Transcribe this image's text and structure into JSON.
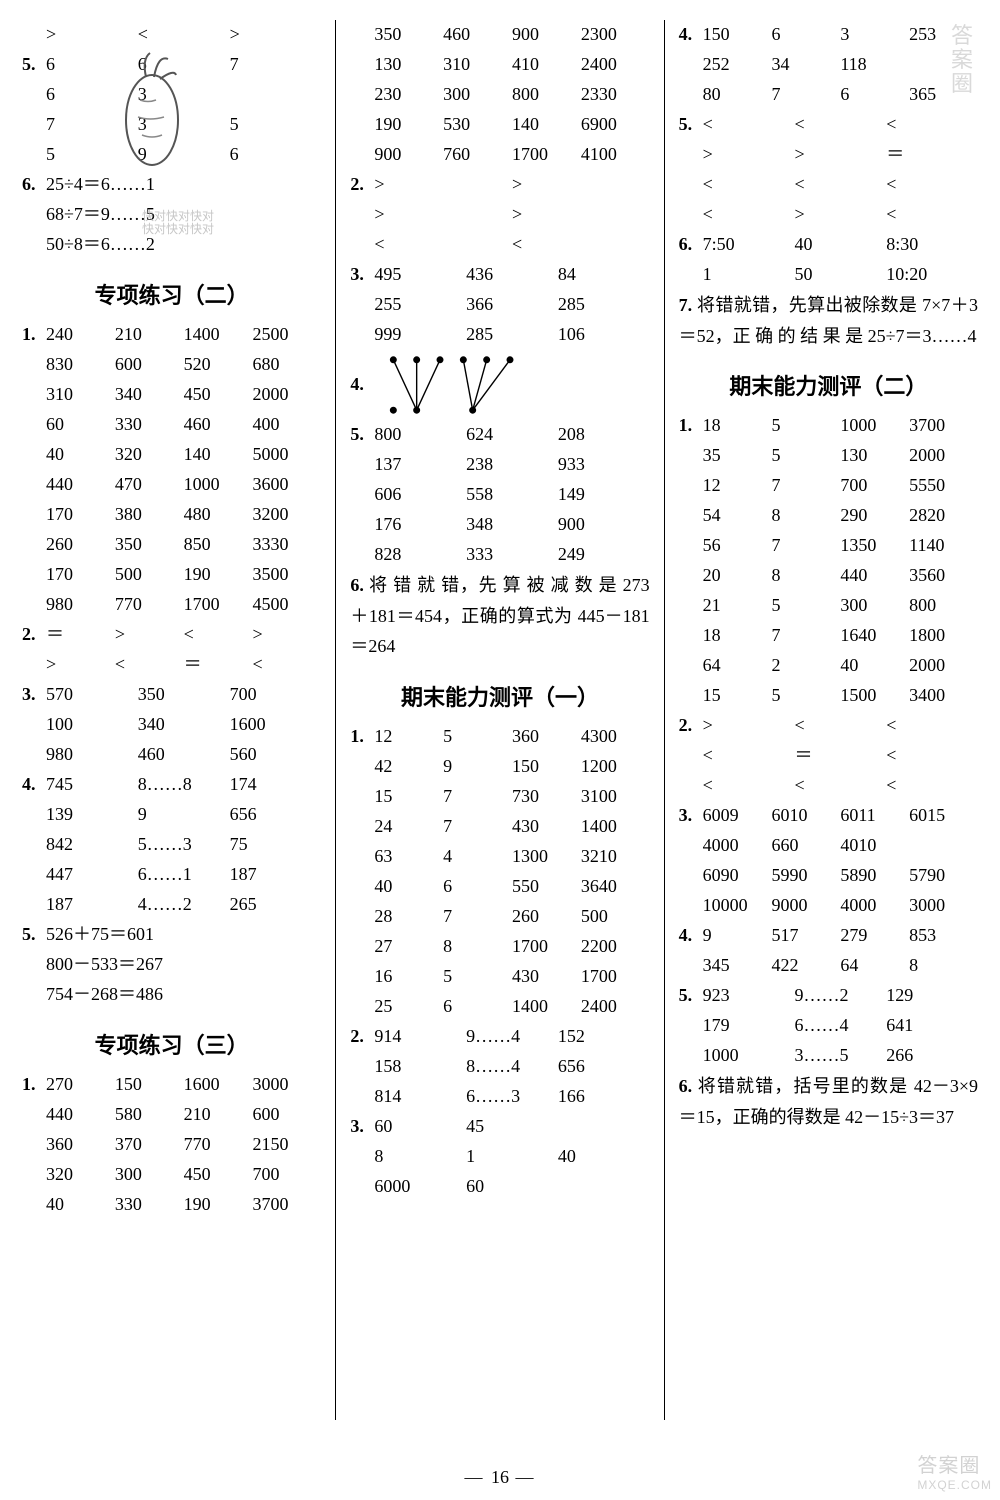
{
  "page_number": "16",
  "watermark_right_big": "答案圈",
  "watermark_right_small": "MXQE.COM",
  "watermark_top": "答案圈",
  "watermark_center_l1": "快对快对快对",
  "watermark_center_l2": "快对快对快对",
  "col1": {
    "r0": [
      ">",
      "<",
      ">"
    ],
    "q5_rows": [
      [
        "6",
        "6",
        "7"
      ],
      [
        "6",
        "3",
        ""
      ],
      [
        "7",
        "3",
        "5"
      ],
      [
        "5",
        "9",
        "6"
      ]
    ],
    "q6_l1": "25÷4＝6……1",
    "q6_l2": "68÷7＝9……5",
    "q6_l3": "50÷8＝6……2",
    "title_a": "专项练习（二）",
    "q1_rows": [
      [
        "240",
        "210",
        "1400",
        "2500"
      ],
      [
        "830",
        "600",
        "520",
        "680"
      ],
      [
        "310",
        "340",
        "450",
        "2000"
      ],
      [
        "60",
        "330",
        "460",
        "400"
      ],
      [
        "40",
        "320",
        "140",
        "5000"
      ],
      [
        "440",
        "470",
        "1000",
        "3600"
      ],
      [
        "170",
        "380",
        "480",
        "3200"
      ],
      [
        "260",
        "350",
        "850",
        "3330"
      ],
      [
        "170",
        "500",
        "190",
        "3500"
      ],
      [
        "980",
        "770",
        "1700",
        "4500"
      ]
    ],
    "q2_rows": [
      [
        "＝",
        ">",
        "<",
        ">"
      ],
      [
        ">",
        "<",
        "＝",
        "<"
      ]
    ],
    "q3_rows": [
      [
        "570",
        "350",
        "700"
      ],
      [
        "100",
        "340",
        "1600"
      ],
      [
        "980",
        "460",
        "560"
      ]
    ],
    "q4_rows": [
      [
        "745",
        "8……8",
        "174"
      ],
      [
        "139",
        "9",
        "656"
      ],
      [
        "842",
        "5……3",
        "75"
      ],
      [
        "447",
        "6……1",
        "187"
      ],
      [
        "187",
        "4……2",
        "265"
      ]
    ],
    "q5b_l1": "526＋75＝601",
    "q5b_l2": "800－533＝267",
    "q5b_l3": "754－268＝486",
    "title_b": "专项练习（三）",
    "q1b_rows": [
      [
        "270",
        "150",
        "1600",
        "3000"
      ],
      [
        "440",
        "580",
        "210",
        "600"
      ],
      [
        "360",
        "370",
        "770",
        "2150"
      ],
      [
        "320",
        "300",
        "450",
        "700"
      ],
      [
        "40",
        "330",
        "190",
        "3700"
      ]
    ]
  },
  "col2": {
    "top_rows": [
      [
        "350",
        "460",
        "900",
        "2300"
      ],
      [
        "130",
        "310",
        "410",
        "2400"
      ],
      [
        "230",
        "300",
        "800",
        "2330"
      ],
      [
        "190",
        "530",
        "140",
        "6900"
      ],
      [
        "900",
        "760",
        "1700",
        "4100"
      ]
    ],
    "q2_rows": [
      [
        ">",
        ">"
      ],
      [
        ">",
        ">"
      ],
      [
        "<",
        "<"
      ]
    ],
    "q3_rows": [
      [
        "495",
        "436",
        "84"
      ],
      [
        "255",
        "366",
        "285"
      ],
      [
        "999",
        "285",
        "106"
      ]
    ],
    "q4_label": "4.",
    "q5_rows": [
      [
        "800",
        "624",
        "208"
      ],
      [
        "137",
        "238",
        "933"
      ],
      [
        "606",
        "558",
        "149"
      ],
      [
        "176",
        "348",
        "900"
      ],
      [
        "828",
        "333",
        "249"
      ]
    ],
    "q6_text": "将 错 就 错，先 算 被 减 数 是 273＋181＝454，正确的算式为 445－181＝264",
    "title_a": "期末能力测评（一）",
    "q1_rows": [
      [
        "12",
        "5",
        "360",
        "4300"
      ],
      [
        "42",
        "9",
        "150",
        "1200"
      ],
      [
        "15",
        "7",
        "730",
        "3100"
      ],
      [
        "24",
        "7",
        "430",
        "1400"
      ],
      [
        "63",
        "4",
        "1300",
        "3210"
      ],
      [
        "40",
        "6",
        "550",
        "3640"
      ],
      [
        "28",
        "7",
        "260",
        "500"
      ],
      [
        "27",
        "8",
        "1700",
        "2200"
      ],
      [
        "16",
        "5",
        "430",
        "1700"
      ],
      [
        "25",
        "6",
        "1400",
        "2400"
      ]
    ],
    "q2b_rows": [
      [
        "914",
        "9……4",
        "152"
      ],
      [
        "158",
        "8……4",
        "656"
      ],
      [
        "814",
        "6……3",
        "166"
      ]
    ],
    "q3b_rows": [
      [
        "60",
        "45",
        ""
      ],
      [
        "8",
        "1",
        "40"
      ],
      [
        "6000",
        "60",
        ""
      ]
    ]
  },
  "col3": {
    "q4_rows": [
      [
        "150",
        "6",
        "3",
        "253"
      ],
      [
        "252",
        "34",
        "118",
        ""
      ],
      [
        "80",
        "7",
        "6",
        "365"
      ]
    ],
    "q5_rows": [
      [
        "<",
        "<",
        "<"
      ],
      [
        ">",
        ">",
        "＝"
      ],
      [
        "<",
        "<",
        "<"
      ],
      [
        "<",
        ">",
        "<"
      ]
    ],
    "q6_rows": [
      [
        "7:50",
        "40",
        "8:30"
      ],
      [
        "1",
        "50",
        "10:20"
      ]
    ],
    "q7_text": "将错就错，先算出被除数是 7×7＋3＝52，正 确 的 结 果 是 25÷7＝3……4",
    "title_a": "期末能力测评（二）",
    "q1_rows": [
      [
        "18",
        "5",
        "1000",
        "3700"
      ],
      [
        "35",
        "5",
        "130",
        "2000"
      ],
      [
        "12",
        "7",
        "700",
        "5550"
      ],
      [
        "54",
        "8",
        "290",
        "2820"
      ],
      [
        "56",
        "7",
        "1350",
        "1140"
      ],
      [
        "20",
        "8",
        "440",
        "3560"
      ],
      [
        "21",
        "5",
        "300",
        "800"
      ],
      [
        "18",
        "7",
        "1640",
        "1800"
      ],
      [
        "64",
        "2",
        "40",
        "2000"
      ],
      [
        "15",
        "5",
        "1500",
        "3400"
      ]
    ],
    "q2_rows": [
      [
        ">",
        "<",
        "<"
      ],
      [
        "<",
        "＝",
        "<"
      ],
      [
        "<",
        "<",
        "<"
      ]
    ],
    "q3_rows": [
      [
        "6009",
        "6010",
        "6011",
        "6015"
      ],
      [
        "4000",
        "660",
        "4010",
        ""
      ],
      [
        "6090",
        "5990",
        "5890",
        "5790"
      ],
      [
        "10000",
        "9000",
        "4000",
        "3000"
      ]
    ],
    "q4b_rows": [
      [
        "9",
        "517",
        "279",
        "853"
      ],
      [
        "345",
        "422",
        "64",
        "8"
      ]
    ],
    "q5b_rows": [
      [
        "923",
        "9……2",
        "129"
      ],
      [
        "179",
        "6……4",
        "641"
      ],
      [
        "1000",
        "3……5",
        "266"
      ]
    ],
    "q6_text": "将错就错，括号里的数是 42－3×9＝15，正确的得数是 42－15÷3＝37"
  }
}
